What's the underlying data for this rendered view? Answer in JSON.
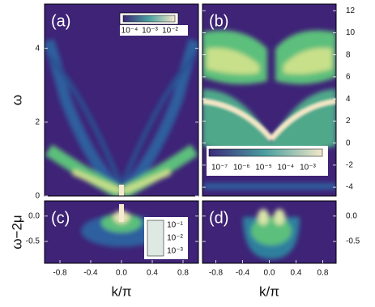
{
  "chart_data": [
    {
      "type": "heatmap",
      "panel_label": "(a)",
      "ylabel": "ω",
      "ylim": [
        0,
        5.2
      ],
      "yticks": [
        0,
        2,
        4
      ],
      "colorbar": {
        "ticks": [
          {
            "value": -4,
            "label": "10⁻⁴"
          },
          {
            "value": -3,
            "label": "10⁻³"
          },
          {
            "value": -2,
            "label": "10⁻²"
          }
        ]
      }
    },
    {
      "type": "heatmap",
      "panel_label": "(b)",
      "ylim": [
        -4.8,
        12.6
      ],
      "yticks": [
        -4,
        -2,
        0,
        2,
        4,
        6,
        8,
        10,
        12
      ],
      "colorbar": {
        "ticks": [
          {
            "value": -7,
            "label": "10⁻⁷"
          },
          {
            "value": -6,
            "label": "10⁻⁶"
          },
          {
            "value": -5,
            "label": "10⁻⁵"
          },
          {
            "value": -4,
            "label": "10⁻⁴"
          },
          {
            "value": -3,
            "label": "10⁻³"
          }
        ]
      }
    },
    {
      "type": "heatmap",
      "panel_label": "(c)",
      "ylabel": "ω−2μ",
      "xlabel": "k/π",
      "xlim": [
        -1,
        1
      ],
      "xticks": [
        -0.8,
        -0.4,
        {
          "value": 0,
          "label": "0.0"
        },
        0.4,
        0.8
      ],
      "ylim": [
        -0.93,
        0.3
      ],
      "yticks": [
        {
          "value": 0,
          "label": "0.0"
        },
        -0.5
      ],
      "colorbar": {
        "ticks": [
          {
            "value": -1,
            "label": "10⁻¹"
          },
          {
            "value": -2,
            "label": "10⁻²"
          },
          {
            "value": -3,
            "label": "10⁻³"
          }
        ]
      }
    },
    {
      "type": "heatmap",
      "panel_label": "(d)",
      "xlabel": "k/π",
      "xlim": [
        -1,
        1
      ],
      "xticks": [
        -0.8,
        -0.4,
        {
          "value": 0,
          "label": "0.0"
        },
        0.4,
        0.8
      ],
      "ylim": [
        -0.93,
        0.3
      ],
      "yticks": [
        {
          "value": 0,
          "label": "0.0"
        },
        -0.5
      ]
    }
  ]
}
